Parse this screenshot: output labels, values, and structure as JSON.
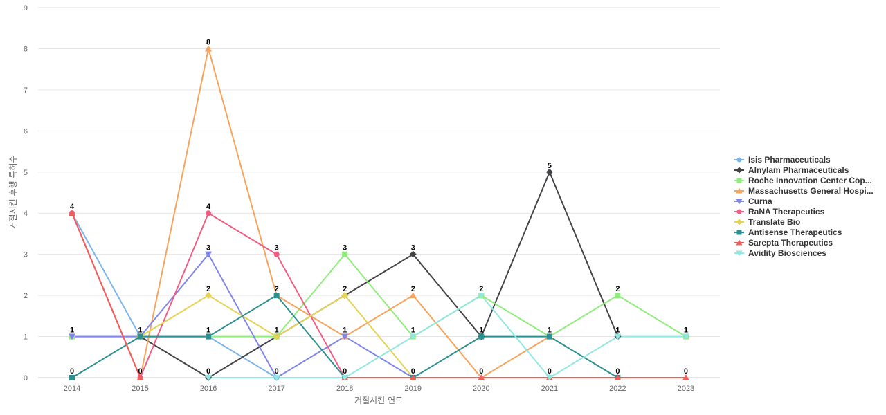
{
  "chart_data": {
    "type": "line",
    "xlabel": "거절시킨 연도",
    "ylabel": "거절시킨 후행 특허수",
    "ylim": [
      0,
      9
    ],
    "yticks": [
      0,
      1,
      2,
      3,
      4,
      5,
      6,
      7,
      8,
      9
    ],
    "categories": [
      "2014",
      "2015",
      "2016",
      "2017",
      "2018",
      "2019",
      "2020",
      "2021",
      "2022",
      "2023"
    ],
    "grid": "horizontal",
    "legend_position": "right",
    "series": [
      {
        "name": "Isis Pharmaceuticals",
        "color": "#7cb5ec",
        "marker": "circle",
        "values": [
          4,
          1,
          1,
          0,
          0,
          null,
          null,
          null,
          null,
          null
        ]
      },
      {
        "name": "Alnylam Pharmaceuticals",
        "color": "#434348",
        "marker": "diamond",
        "values": [
          null,
          1,
          0,
          1,
          2,
          3,
          1,
          5,
          1,
          null
        ]
      },
      {
        "name": "Roche Innovation Center Cop...",
        "color": "#90ed7d",
        "marker": "square",
        "values": [
          1,
          1,
          1,
          1,
          3,
          1,
          2,
          1,
          2,
          1
        ]
      },
      {
        "name": "Massachusetts General Hospi...",
        "color": "#f7a35c",
        "marker": "triangle",
        "values": [
          null,
          0,
          8,
          2,
          1,
          2,
          0,
          1,
          null,
          null
        ]
      },
      {
        "name": "Curna",
        "color": "#8085e9",
        "marker": "triangle-down",
        "values": [
          1,
          1,
          3,
          0,
          1,
          0,
          null,
          null,
          null,
          null
        ]
      },
      {
        "name": "RaNA Therapeutics",
        "color": "#f15c80",
        "marker": "circle",
        "values": [
          4,
          0,
          4,
          3,
          0,
          null,
          null,
          null,
          null,
          null
        ]
      },
      {
        "name": "Translate Bio",
        "color": "#e4d354",
        "marker": "diamond",
        "values": [
          null,
          1,
          2,
          1,
          2,
          0,
          null,
          null,
          null,
          null
        ]
      },
      {
        "name": "Antisense Therapeutics",
        "color": "#2b908f",
        "marker": "square",
        "values": [
          0,
          1,
          1,
          2,
          0,
          0,
          1,
          1,
          0,
          null
        ]
      },
      {
        "name": "Sarepta Therapeutics",
        "color": "#f45b5b",
        "marker": "triangle",
        "values": [
          4,
          0,
          null,
          null,
          0,
          0,
          0,
          0,
          0,
          0
        ]
      },
      {
        "name": "Avidity Biosciences",
        "color": "#91e8e1",
        "marker": "triangle-down",
        "values": [
          null,
          null,
          0,
          0,
          0,
          1,
          2,
          0,
          1,
          1
        ]
      }
    ],
    "data_labels": [
      {
        "x": "2014",
        "y": 4,
        "text": "4"
      },
      {
        "x": "2014",
        "y": 1,
        "text": "1"
      },
      {
        "x": "2014",
        "y": 0,
        "text": "0"
      },
      {
        "x": "2015",
        "y": 1,
        "text": "1"
      },
      {
        "x": "2015",
        "y": 0,
        "text": "0"
      },
      {
        "x": "2016",
        "y": 8,
        "text": "8"
      },
      {
        "x": "2016",
        "y": 4,
        "text": "4"
      },
      {
        "x": "2016",
        "y": 3,
        "text": "3"
      },
      {
        "x": "2016",
        "y": 2,
        "text": "2"
      },
      {
        "x": "2016",
        "y": 1,
        "text": "1"
      },
      {
        "x": "2016",
        "y": 0,
        "text": "0"
      },
      {
        "x": "2017",
        "y": 3,
        "text": "3"
      },
      {
        "x": "2017",
        "y": 2,
        "text": "2"
      },
      {
        "x": "2017",
        "y": 1,
        "text": "1"
      },
      {
        "x": "2017",
        "y": 0,
        "text": "0"
      },
      {
        "x": "2018",
        "y": 3,
        "text": "3"
      },
      {
        "x": "2018",
        "y": 2,
        "text": "2"
      },
      {
        "x": "2018",
        "y": 1,
        "text": "1"
      },
      {
        "x": "2018",
        "y": 0,
        "text": "0"
      },
      {
        "x": "2019",
        "y": 3,
        "text": "3"
      },
      {
        "x": "2019",
        "y": 2,
        "text": "2"
      },
      {
        "x": "2019",
        "y": 1,
        "text": "1"
      },
      {
        "x": "2019",
        "y": 0,
        "text": "0"
      },
      {
        "x": "2020",
        "y": 2,
        "text": "2"
      },
      {
        "x": "2020",
        "y": 1,
        "text": "1"
      },
      {
        "x": "2020",
        "y": 0,
        "text": "0"
      },
      {
        "x": "2021",
        "y": 5,
        "text": "5"
      },
      {
        "x": "2021",
        "y": 1,
        "text": "1"
      },
      {
        "x": "2021",
        "y": 0,
        "text": "0"
      },
      {
        "x": "2022",
        "y": 2,
        "text": "2"
      },
      {
        "x": "2022",
        "y": 1,
        "text": "1"
      },
      {
        "x": "2022",
        "y": 0,
        "text": "0"
      },
      {
        "x": "2023",
        "y": 1,
        "text": "1"
      },
      {
        "x": "2023",
        "y": 0,
        "text": "0"
      }
    ]
  }
}
